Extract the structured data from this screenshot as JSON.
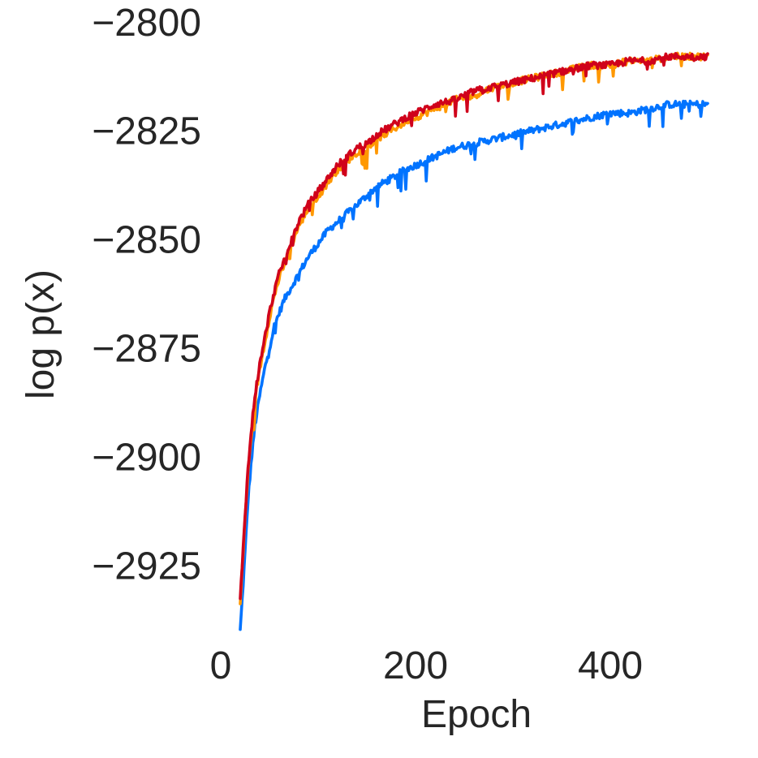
{
  "chart_data": {
    "type": "line",
    "title": "",
    "xlabel": "Epoch",
    "ylabel": "log p(x)",
    "xlim": [
      0,
      520
    ],
    "ylim": [
      -2943,
      -2795
    ],
    "xticks": [
      0,
      200,
      400
    ],
    "yticks": [
      -2800,
      -2825,
      -2850,
      -2875,
      -2900,
      -2925
    ],
    "xtick_labels": [
      "0",
      "200",
      "400"
    ],
    "ytick_labels": [
      "−2800",
      "−2825",
      "−2850",
      "−2875",
      "−2900",
      "−2925"
    ],
    "grid": false,
    "legend": "none",
    "series": [
      {
        "color": "#0073ff",
        "x": [
          20,
          22,
          25,
          28,
          31,
          35,
          40,
          45,
          50,
          55,
          60,
          65,
          70,
          75,
          80,
          90,
          100,
          110,
          120,
          130,
          140,
          150,
          160,
          175,
          190,
          200,
          220,
          240,
          260,
          280,
          300,
          320,
          340,
          360,
          380,
          400,
          420,
          440,
          460,
          480,
          500
        ],
        "y": [
          -2940,
          -2933,
          -2922,
          -2910,
          -2902,
          -2893,
          -2886,
          -2880,
          -2875,
          -2870,
          -2867,
          -2864,
          -2862,
          -2860,
          -2858,
          -2854,
          -2851,
          -2848,
          -2846,
          -2844,
          -2842,
          -2840,
          -2838,
          -2836,
          -2834,
          -2833,
          -2831,
          -2829,
          -2828,
          -2827,
          -2826,
          -2825,
          -2824,
          -2823,
          -2822,
          -2821,
          -2821,
          -2820,
          -2819,
          -2819,
          -2819
        ]
      },
      {
        "color": "#ff9800",
        "x": [
          20,
          22,
          25,
          28,
          31,
          35,
          40,
          45,
          50,
          55,
          60,
          65,
          70,
          75,
          80,
          90,
          100,
          110,
          120,
          130,
          140,
          150,
          160,
          175,
          190,
          200,
          220,
          240,
          260,
          280,
          300,
          320,
          340,
          360,
          380,
          400,
          420,
          440,
          460,
          480,
          500
        ],
        "y": [
          -2934,
          -2926,
          -2914,
          -2904,
          -2896,
          -2887,
          -2880,
          -2874,
          -2868,
          -2863,
          -2859,
          -2856,
          -2853,
          -2850,
          -2847,
          -2843,
          -2840,
          -2837,
          -2834,
          -2832,
          -2830,
          -2829,
          -2827,
          -2825,
          -2823,
          -2822,
          -2820,
          -2818,
          -2817,
          -2815,
          -2814,
          -2813,
          -2812,
          -2811,
          -2810,
          -2810,
          -2809,
          -2809,
          -2808,
          -2808,
          -2808
        ]
      },
      {
        "color": "#d0021b",
        "x": [
          20,
          22,
          25,
          28,
          31,
          35,
          40,
          45,
          50,
          55,
          60,
          65,
          70,
          75,
          80,
          90,
          100,
          110,
          120,
          130,
          140,
          150,
          160,
          175,
          190,
          200,
          220,
          240,
          260,
          280,
          300,
          320,
          340,
          360,
          380,
          400,
          420,
          440,
          460,
          480,
          500
        ],
        "y": [
          -2933,
          -2925,
          -2913,
          -2903,
          -2895,
          -2886,
          -2879,
          -2873,
          -2867,
          -2862,
          -2858,
          -2855,
          -2852,
          -2849,
          -2846,
          -2842,
          -2839,
          -2836,
          -2833,
          -2831,
          -2829,
          -2828,
          -2826,
          -2824,
          -2822,
          -2821,
          -2819,
          -2818,
          -2816,
          -2815,
          -2814,
          -2813,
          -2812,
          -2811,
          -2810,
          -2810,
          -2809,
          -2809,
          -2808,
          -2808,
          -2808
        ]
      }
    ]
  }
}
